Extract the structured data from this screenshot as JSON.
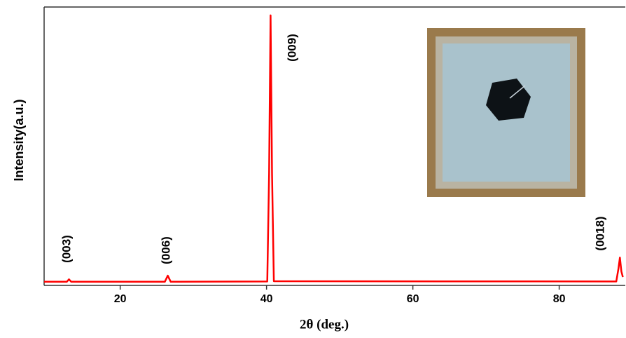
{
  "chart_data": {
    "type": "line",
    "x_label": "2θ (deg.)",
    "y_label": "Intensity(a.u.)",
    "xlim": [
      9.6,
      88.7
    ],
    "ylim": [
      0,
      100
    ],
    "xticks": [
      20,
      40,
      60,
      80
    ],
    "series": [
      {
        "color": "#ff0000",
        "x": [
          9.6,
          12.7,
          13.0,
          13.3,
          26.1,
          26.5,
          26.9,
          40.1,
          40.35,
          40.55,
          40.75,
          41.0,
          87.8,
          88.1,
          88.3,
          88.5,
          88.7
        ],
        "values": [
          1.3,
          1.3,
          2.2,
          1.3,
          1.3,
          3.5,
          1.3,
          1.4,
          40,
          97,
          40,
          1.5,
          1.4,
          6,
          10,
          5,
          3
        ]
      }
    ],
    "annotations": [
      "(003)",
      "(006)",
      "(009)",
      "(0018)"
    ]
  }
}
